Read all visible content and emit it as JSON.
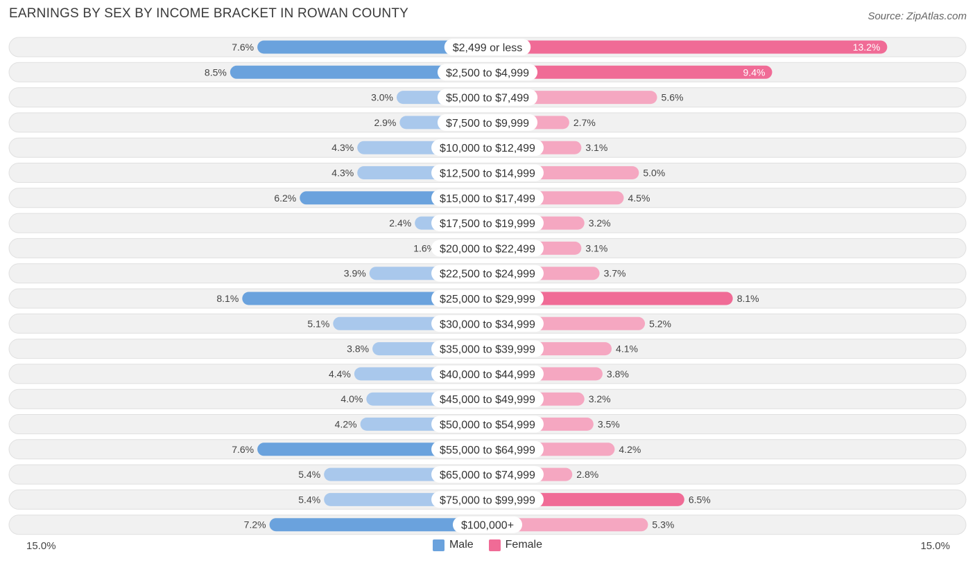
{
  "header": {
    "title": "EARNINGS BY SEX BY INCOME BRACKET IN ROWAN COUNTY",
    "source": "Source: ZipAtlas.com"
  },
  "colors": {
    "male": "#6aa2dd",
    "male_light": "#a9c8ec",
    "female": "#f06b96",
    "female_light": "#f5a7c1",
    "row_bg": "#f1f1f1",
    "row_border": "#e0e0e0"
  },
  "legend": {
    "male_label": "Male",
    "female_label": "Female"
  },
  "axis": {
    "left_label": "15.0%",
    "right_label": "15.0%"
  },
  "chart_data": {
    "type": "bar",
    "orientation": "horizontal-diverging",
    "title": "EARNINGS BY SEX BY INCOME BRACKET IN ROWAN COUNTY",
    "xlim": [
      -15.0,
      15.0
    ],
    "unit": "%",
    "categories": [
      "$2,499 or less",
      "$2,500 to $4,999",
      "$5,000 to $7,499",
      "$7,500 to $9,999",
      "$10,000 to $12,499",
      "$12,500 to $14,999",
      "$15,000 to $17,499",
      "$17,500 to $19,999",
      "$20,000 to $22,499",
      "$22,500 to $24,999",
      "$25,000 to $29,999",
      "$30,000 to $34,999",
      "$35,000 to $39,999",
      "$40,000 to $44,999",
      "$45,000 to $49,999",
      "$50,000 to $54,999",
      "$55,000 to $64,999",
      "$65,000 to $74,999",
      "$75,000 to $99,999",
      "$100,000+"
    ],
    "series": [
      {
        "name": "Male",
        "values": [
          7.6,
          8.5,
          3.0,
          2.9,
          4.3,
          4.3,
          6.2,
          2.4,
          1.6,
          3.9,
          8.1,
          5.1,
          3.8,
          4.4,
          4.0,
          4.2,
          7.6,
          5.4,
          5.4,
          7.2
        ],
        "labels": [
          "7.6%",
          "8.5%",
          "3.0%",
          "2.9%",
          "4.3%",
          "4.3%",
          "6.2%",
          "2.4%",
          "1.6%",
          "3.9%",
          "8.1%",
          "5.1%",
          "3.8%",
          "4.4%",
          "4.0%",
          "4.2%",
          "7.6%",
          "5.4%",
          "5.4%",
          "7.2%"
        ]
      },
      {
        "name": "Female",
        "values": [
          13.2,
          9.4,
          5.6,
          2.7,
          3.1,
          5.0,
          4.5,
          3.2,
          3.1,
          3.7,
          8.1,
          5.2,
          4.1,
          3.8,
          3.2,
          3.5,
          4.2,
          2.8,
          6.5,
          5.3
        ],
        "labels": [
          "13.2%",
          "9.4%",
          "5.6%",
          "2.7%",
          "3.1%",
          "5.0%",
          "4.5%",
          "3.2%",
          "3.1%",
          "3.7%",
          "8.1%",
          "5.2%",
          "4.1%",
          "3.8%",
          "3.2%",
          "3.5%",
          "4.2%",
          "2.8%",
          "6.5%",
          "5.3%"
        ]
      }
    ]
  }
}
